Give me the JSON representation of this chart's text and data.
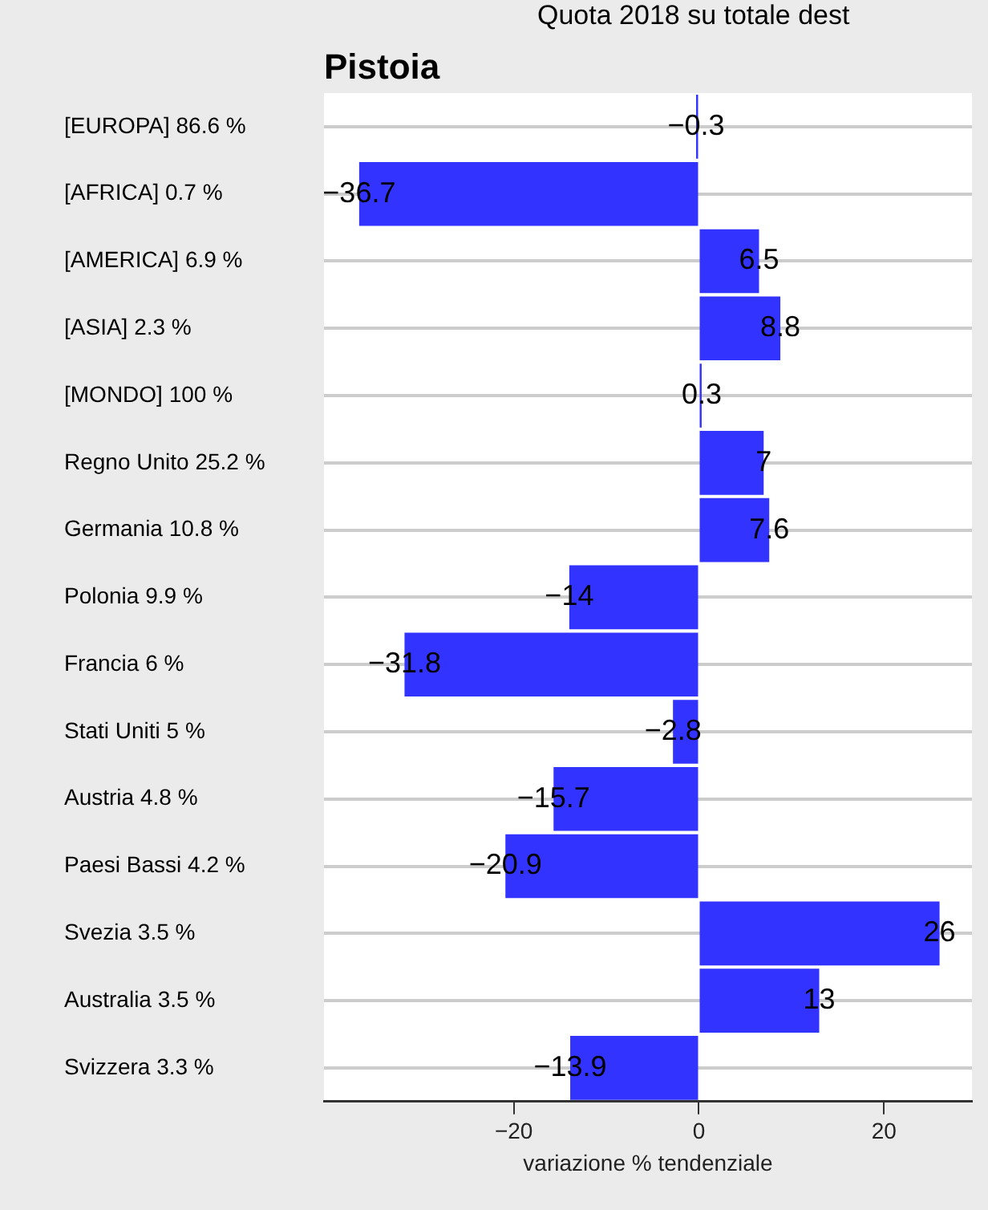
{
  "chart_data": {
    "type": "bar",
    "orientation": "horizontal",
    "title": "Pistoia",
    "subtitle": "Quota 2018 su totale dest",
    "xlabel": "variazione % tendenziale",
    "categories": [
      "[EUROPA] 86.6 %",
      "[AFRICA] 0.7 %",
      "[AMERICA] 6.9 %",
      "[ASIA] 2.3 %",
      "[MONDO] 100 %",
      "Regno Unito 25.2 %",
      "Germania 10.8 %",
      "Polonia 9.9 %",
      "Francia 6 %",
      "Stati Uniti 5 %",
      "Austria 4.8 %",
      "Paesi Bassi 4.2 %",
      "Svezia 3.5 %",
      "Australia 3.5 %",
      "Svizzera 3.3 %"
    ],
    "values": [
      -0.3,
      -36.7,
      6.5,
      8.8,
      0.3,
      7,
      7.6,
      -14,
      -31.8,
      -2.8,
      -15.7,
      -20.9,
      26,
      13,
      -13.9
    ],
    "color": "#3333ff",
    "xlim": [
      -40.5,
      29.5
    ],
    "xticks": [
      -20,
      0,
      20
    ],
    "grid": "y",
    "data_labels": true,
    "legend": false
  }
}
